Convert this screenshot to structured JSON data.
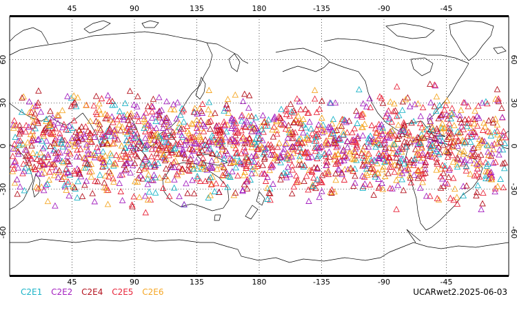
{
  "map": {
    "lon_ticks": [
      "45",
      "90",
      "135",
      "180",
      "-135",
      "-90",
      "-45"
    ],
    "lat_ticks": [
      "60",
      "30",
      "0",
      "-30",
      "-60"
    ],
    "grid": "dotted",
    "projection": "cylindrical equidistant, centered 180",
    "observation_marker": "triangle",
    "coverage": "latitudes approx. -45 to 45, all longitudes",
    "colors": {
      "coastline": "#000000",
      "C2E1": "#19b3c7",
      "C2E2": "#a31fbf",
      "C2E4": "#b3101c",
      "C2E5": "#e8253a",
      "C2E6": "#f5a623"
    }
  },
  "legend": [
    {
      "label": "C2E1",
      "color": "#19b3c7"
    },
    {
      "label": "C2E2",
      "color": "#a31fbf"
    },
    {
      "label": "C2E4",
      "color": "#b3101c"
    },
    {
      "label": "C2E5",
      "color": "#e8253a"
    },
    {
      "label": "C2E6",
      "color": "#f5a623"
    }
  ],
  "caption": "UCARwet2.2025-06-03"
}
